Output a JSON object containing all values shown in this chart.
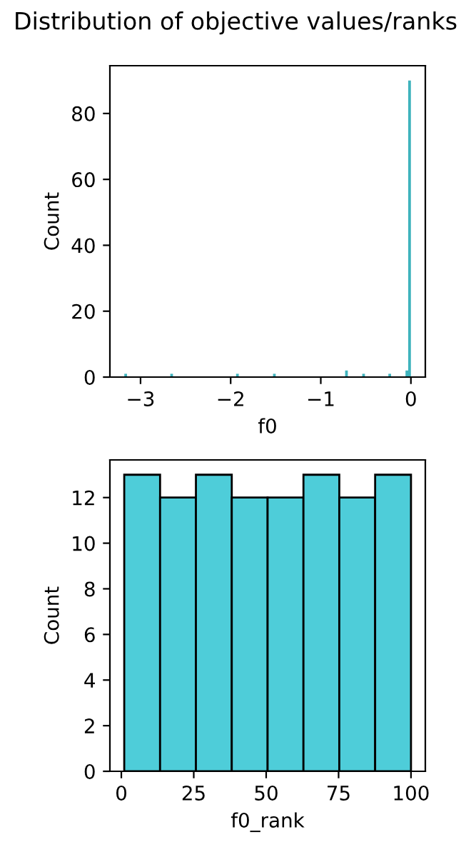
{
  "chart_data": [
    {
      "type": "histogram",
      "title": "Distribution of objective values/ranks",
      "xlabel": "f0",
      "ylabel": "Count",
      "color": "#3fb3bd",
      "bins": [
        -3.18,
        -3.15,
        -2.67,
        -2.64,
        -1.94,
        -1.91,
        -1.53,
        -1.5,
        -0.73,
        -0.7,
        -0.54,
        -0.51,
        -0.25,
        -0.22,
        -0.06,
        -0.03,
        0
      ],
      "values": [
        1,
        0,
        1,
        0,
        1,
        0,
        1,
        0,
        2,
        0,
        1,
        0,
        1,
        0,
        2,
        90
      ],
      "xlim": [
        -3.34,
        0.16
      ],
      "xticks": [
        {
          "value": -3,
          "label": "−3"
        },
        {
          "value": -2,
          "label": "−2"
        },
        {
          "value": -1,
          "label": "−1"
        },
        0
      ],
      "ylim": [
        0,
        94.5
      ],
      "yticks": [
        0,
        20,
        40,
        60,
        80
      ],
      "grid": false,
      "legend": false
    },
    {
      "type": "histogram",
      "xlabel": "f0_rank",
      "ylabel": "Count",
      "color": "#4ecdd9",
      "bins": [
        1,
        13.375,
        25.75,
        38.125,
        50.5,
        62.875,
        75.25,
        87.625,
        100
      ],
      "values": [
        13,
        12,
        13,
        12,
        12,
        13,
        12,
        13
      ],
      "xlim": [
        -3.95,
        104.95
      ],
      "xticks": [
        0,
        25,
        50,
        75,
        100
      ],
      "ylim": [
        0,
        13.65
      ],
      "yticks": [
        0,
        2,
        4,
        6,
        8,
        10,
        12
      ],
      "grid": false,
      "legend": false
    }
  ]
}
